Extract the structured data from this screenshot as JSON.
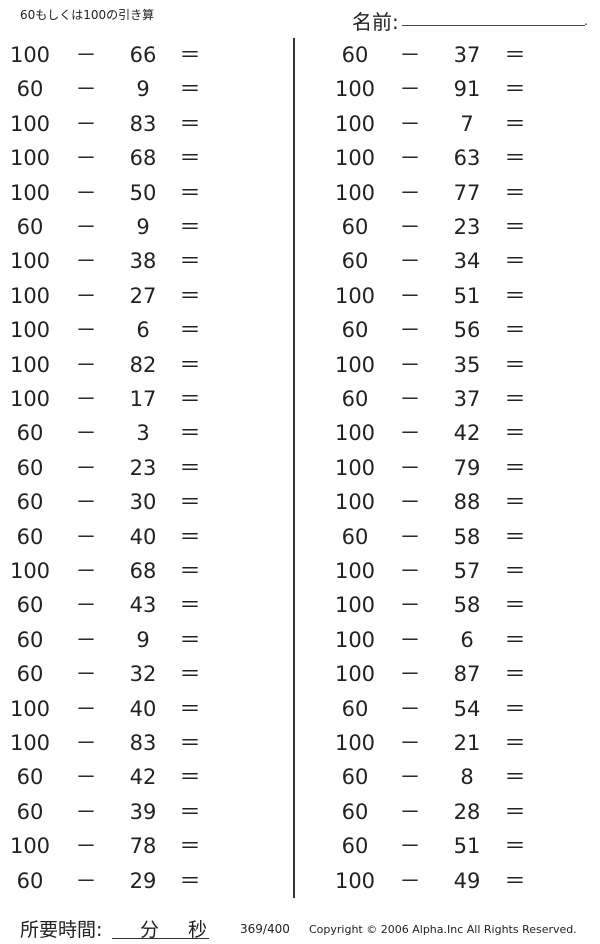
{
  "header": {
    "subtitle": "60もしくは100の引き算",
    "name_label": "名前:",
    "name_dot": "."
  },
  "operator": "－",
  "equals": "＝",
  "left": [
    [
      "100",
      "66"
    ],
    [
      "60",
      "9"
    ],
    [
      "100",
      "83"
    ],
    [
      "100",
      "68"
    ],
    [
      "100",
      "50"
    ],
    [
      "60",
      "9"
    ],
    [
      "100",
      "38"
    ],
    [
      "100",
      "27"
    ],
    [
      "100",
      "6"
    ],
    [
      "100",
      "82"
    ],
    [
      "100",
      "17"
    ],
    [
      "60",
      "3"
    ],
    [
      "60",
      "23"
    ],
    [
      "60",
      "30"
    ],
    [
      "60",
      "40"
    ],
    [
      "100",
      "68"
    ],
    [
      "60",
      "43"
    ],
    [
      "60",
      "9"
    ],
    [
      "60",
      "32"
    ],
    [
      "100",
      "40"
    ],
    [
      "100",
      "83"
    ],
    [
      "60",
      "42"
    ],
    [
      "60",
      "39"
    ],
    [
      "100",
      "78"
    ],
    [
      "60",
      "29"
    ]
  ],
  "right": [
    [
      "60",
      "37"
    ],
    [
      "100",
      "91"
    ],
    [
      "100",
      "7"
    ],
    [
      "100",
      "63"
    ],
    [
      "100",
      "77"
    ],
    [
      "60",
      "23"
    ],
    [
      "60",
      "34"
    ],
    [
      "100",
      "51"
    ],
    [
      "60",
      "56"
    ],
    [
      "100",
      "35"
    ],
    [
      "60",
      "37"
    ],
    [
      "100",
      "42"
    ],
    [
      "100",
      "79"
    ],
    [
      "100",
      "88"
    ],
    [
      "60",
      "58"
    ],
    [
      "100",
      "57"
    ],
    [
      "100",
      "58"
    ],
    [
      "100",
      "6"
    ],
    [
      "100",
      "87"
    ],
    [
      "60",
      "54"
    ],
    [
      "100",
      "21"
    ],
    [
      "60",
      "8"
    ],
    [
      "60",
      "28"
    ],
    [
      "60",
      "51"
    ],
    [
      "100",
      "49"
    ]
  ],
  "footer": {
    "time_label": "所要時間:",
    "minutes": "分",
    "seconds": "秒",
    "page": "369/400",
    "copyright": "Copyright © 2006 Alpha.Inc All Rights Reserved."
  }
}
